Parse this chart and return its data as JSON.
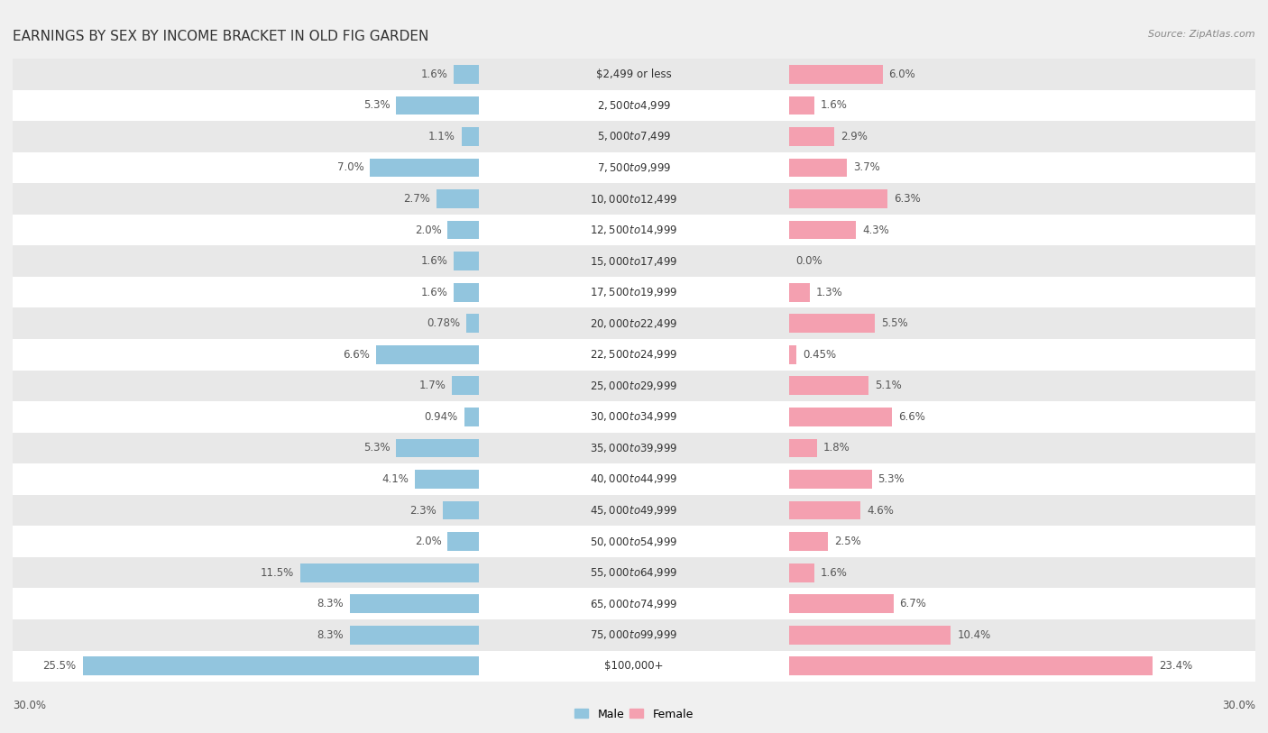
{
  "title": "EARNINGS BY SEX BY INCOME BRACKET IN OLD FIG GARDEN",
  "source": "Source: ZipAtlas.com",
  "categories": [
    "$2,499 or less",
    "$2,500 to $4,999",
    "$5,000 to $7,499",
    "$7,500 to $9,999",
    "$10,000 to $12,499",
    "$12,500 to $14,999",
    "$15,000 to $17,499",
    "$17,500 to $19,999",
    "$20,000 to $22,499",
    "$22,500 to $24,999",
    "$25,000 to $29,999",
    "$30,000 to $34,999",
    "$35,000 to $39,999",
    "$40,000 to $44,999",
    "$45,000 to $49,999",
    "$50,000 to $54,999",
    "$55,000 to $64,999",
    "$65,000 to $74,999",
    "$75,000 to $99,999",
    "$100,000+"
  ],
  "male_values": [
    1.6,
    5.3,
    1.1,
    7.0,
    2.7,
    2.0,
    1.6,
    1.6,
    0.78,
    6.6,
    1.7,
    0.94,
    5.3,
    4.1,
    2.3,
    2.0,
    11.5,
    8.3,
    8.3,
    25.5
  ],
  "female_values": [
    6.0,
    1.6,
    2.9,
    3.7,
    6.3,
    4.3,
    0.0,
    1.3,
    5.5,
    0.45,
    5.1,
    6.6,
    1.8,
    5.3,
    4.6,
    2.5,
    1.6,
    6.7,
    10.4,
    23.4
  ],
  "male_color": "#92C5DE",
  "female_color": "#F4A0B0",
  "label_color": "#555555",
  "axis_max": 30.0,
  "background_color": "#f0f0f0",
  "bar_bg_color": "#ffffff",
  "row_alt_color": "#e8e8e8",
  "title_fontsize": 11,
  "label_fontsize": 8.5,
  "category_fontsize": 8.5,
  "legend_fontsize": 9,
  "source_fontsize": 8
}
